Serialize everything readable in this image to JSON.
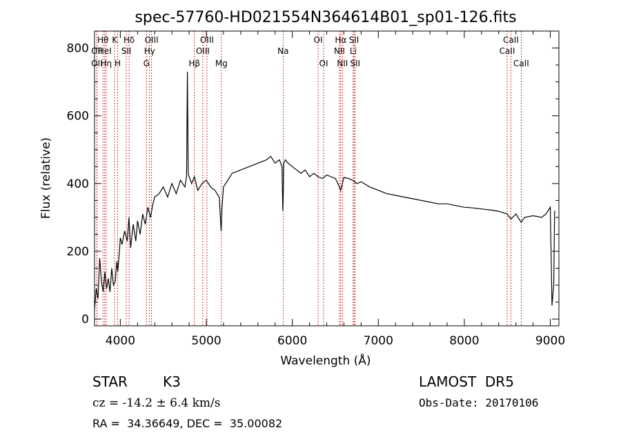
{
  "chart_data": {
    "type": "line",
    "title": "spec-57760-HD021554N364614B01_sp01-126.fits",
    "xlabel": "Wavelength (Å)",
    "ylabel": "Flux (relative)",
    "xlim": [
      3700,
      9100
    ],
    "ylim": [
      -20,
      850
    ],
    "xticks": [
      4000,
      5000,
      6000,
      7000,
      8000,
      9000
    ],
    "yticks": [
      0,
      200,
      400,
      600,
      800
    ],
    "grid": false,
    "series": [
      {
        "x": [
          3700,
          3720,
          3740,
          3760,
          3780,
          3800,
          3820,
          3840,
          3860,
          3880,
          3900,
          3920,
          3940,
          3960,
          3970,
          3990,
          4000,
          4020,
          4050,
          4080,
          4100,
          4120,
          4150,
          4180,
          4200,
          4230,
          4260,
          4290,
          4320,
          4350,
          4380,
          4400,
          4450,
          4500,
          4550,
          4600,
          4650,
          4700,
          4750,
          4770,
          4780,
          4790,
          4800,
          4830,
          4861,
          4900,
          4950,
          5000,
          5050,
          5100,
          5150,
          5172,
          5183,
          5200,
          5250,
          5300,
          5400,
          5500,
          5600,
          5700,
          5750,
          5800,
          5850,
          5880,
          5890,
          5896,
          5900,
          5920,
          5950,
          6000,
          6050,
          6100,
          6150,
          6200,
          6250,
          6300,
          6350,
          6400,
          6450,
          6500,
          6530,
          6563,
          6600,
          6650,
          6700,
          6750,
          6800,
          6900,
          7000,
          7100,
          7200,
          7300,
          7400,
          7500,
          7600,
          7700,
          7800,
          7900,
          8000,
          8100,
          8200,
          8300,
          8400,
          8498,
          8542,
          8600,
          8662,
          8700,
          8800,
          8900,
          8950,
          9000,
          9020,
          9040,
          9050
        ],
        "values": [
          30,
          90,
          60,
          180,
          110,
          80,
          140,
          90,
          120,
          80,
          150,
          100,
          110,
          170,
          140,
          200,
          240,
          220,
          260,
          230,
          300,
          210,
          280,
          230,
          290,
          250,
          310,
          280,
          330,
          300,
          340,
          360,
          370,
          390,
          360,
          400,
          370,
          410,
          390,
          420,
          730,
          430,
          420,
          400,
          420,
          380,
          400,
          410,
          390,
          380,
          360,
          260,
          330,
          390,
          410,
          430,
          440,
          450,
          460,
          470,
          480,
          460,
          470,
          450,
          320,
          380,
          460,
          470,
          460,
          450,
          440,
          430,
          440,
          420,
          430,
          420,
          415,
          425,
          420,
          415,
          400,
          380,
          418,
          415,
          410,
          400,
          405,
          390,
          380,
          370,
          365,
          360,
          355,
          350,
          345,
          340,
          340,
          335,
          330,
          328,
          325,
          322,
          318,
          310,
          295,
          310,
          285,
          300,
          305,
          300,
          310,
          330,
          40,
          100,
          320
        ]
      }
    ],
    "spectral_lines": [
      {
        "label": "Hθ",
        "wl": 3798,
        "row": 1
      },
      {
        "label": "OII",
        "wl": 3727,
        "row": 2
      },
      {
        "label": "HeI",
        "wl": 3819,
        "row": 2
      },
      {
        "label": "OII",
        "wl": 3727,
        "row": 3
      },
      {
        "label": "Hη",
        "wl": 3835,
        "row": 3
      },
      {
        "label": "K",
        "wl": 3934,
        "row": 1
      },
      {
        "label": "H",
        "wl": 3969,
        "row": 3
      },
      {
        "label": "SII",
        "wl": 4069,
        "row": 2
      },
      {
        "label": "Hδ",
        "wl": 4102,
        "row": 1
      },
      {
        "label": "OIII",
        "wl": 4363,
        "row": 1
      },
      {
        "label": "Hγ",
        "wl": 4340,
        "row": 2
      },
      {
        "label": "G",
        "wl": 4304,
        "row": 3
      },
      {
        "label": "Hβ",
        "wl": 4861,
        "row": 3
      },
      {
        "label": "OIII",
        "wl": 5007,
        "row": 1
      },
      {
        "label": "OIII",
        "wl": 4959,
        "row": 2
      },
      {
        "label": "Mg",
        "wl": 5175,
        "row": 3
      },
      {
        "label": "Na",
        "wl": 5893,
        "row": 2
      },
      {
        "label": "OI",
        "wl": 6300,
        "row": 1
      },
      {
        "label": "OI",
        "wl": 6364,
        "row": 3
      },
      {
        "label": "Hα",
        "wl": 6563,
        "row": 1
      },
      {
        "label": "NII",
        "wl": 6548,
        "row": 2
      },
      {
        "label": "NII",
        "wl": 6583,
        "row": 3
      },
      {
        "label": "SII",
        "wl": 6717,
        "row": 1
      },
      {
        "label": "Li",
        "wl": 6708,
        "row": 2
      },
      {
        "label": "SII",
        "wl": 6731,
        "row": 3
      },
      {
        "label": "CaII",
        "wl": 8542,
        "row": 1
      },
      {
        "label": "CaII",
        "wl": 8498,
        "row": 2
      },
      {
        "label": "CaII",
        "wl": 8662,
        "row": 3
      }
    ]
  },
  "info": {
    "obj_class": "STAR",
    "subclass": "K3",
    "survey": "LAMOST  DR5",
    "cz": "cz = -14.2 ± 6.4 km/s",
    "obs_date": "Obs-Date: 20170106",
    "coords": "RA =  34.36649, DEC =  35.00082"
  },
  "colors": {
    "spectrum": "#000000",
    "line_marker": "#cc0000",
    "background": "#ffffff"
  }
}
